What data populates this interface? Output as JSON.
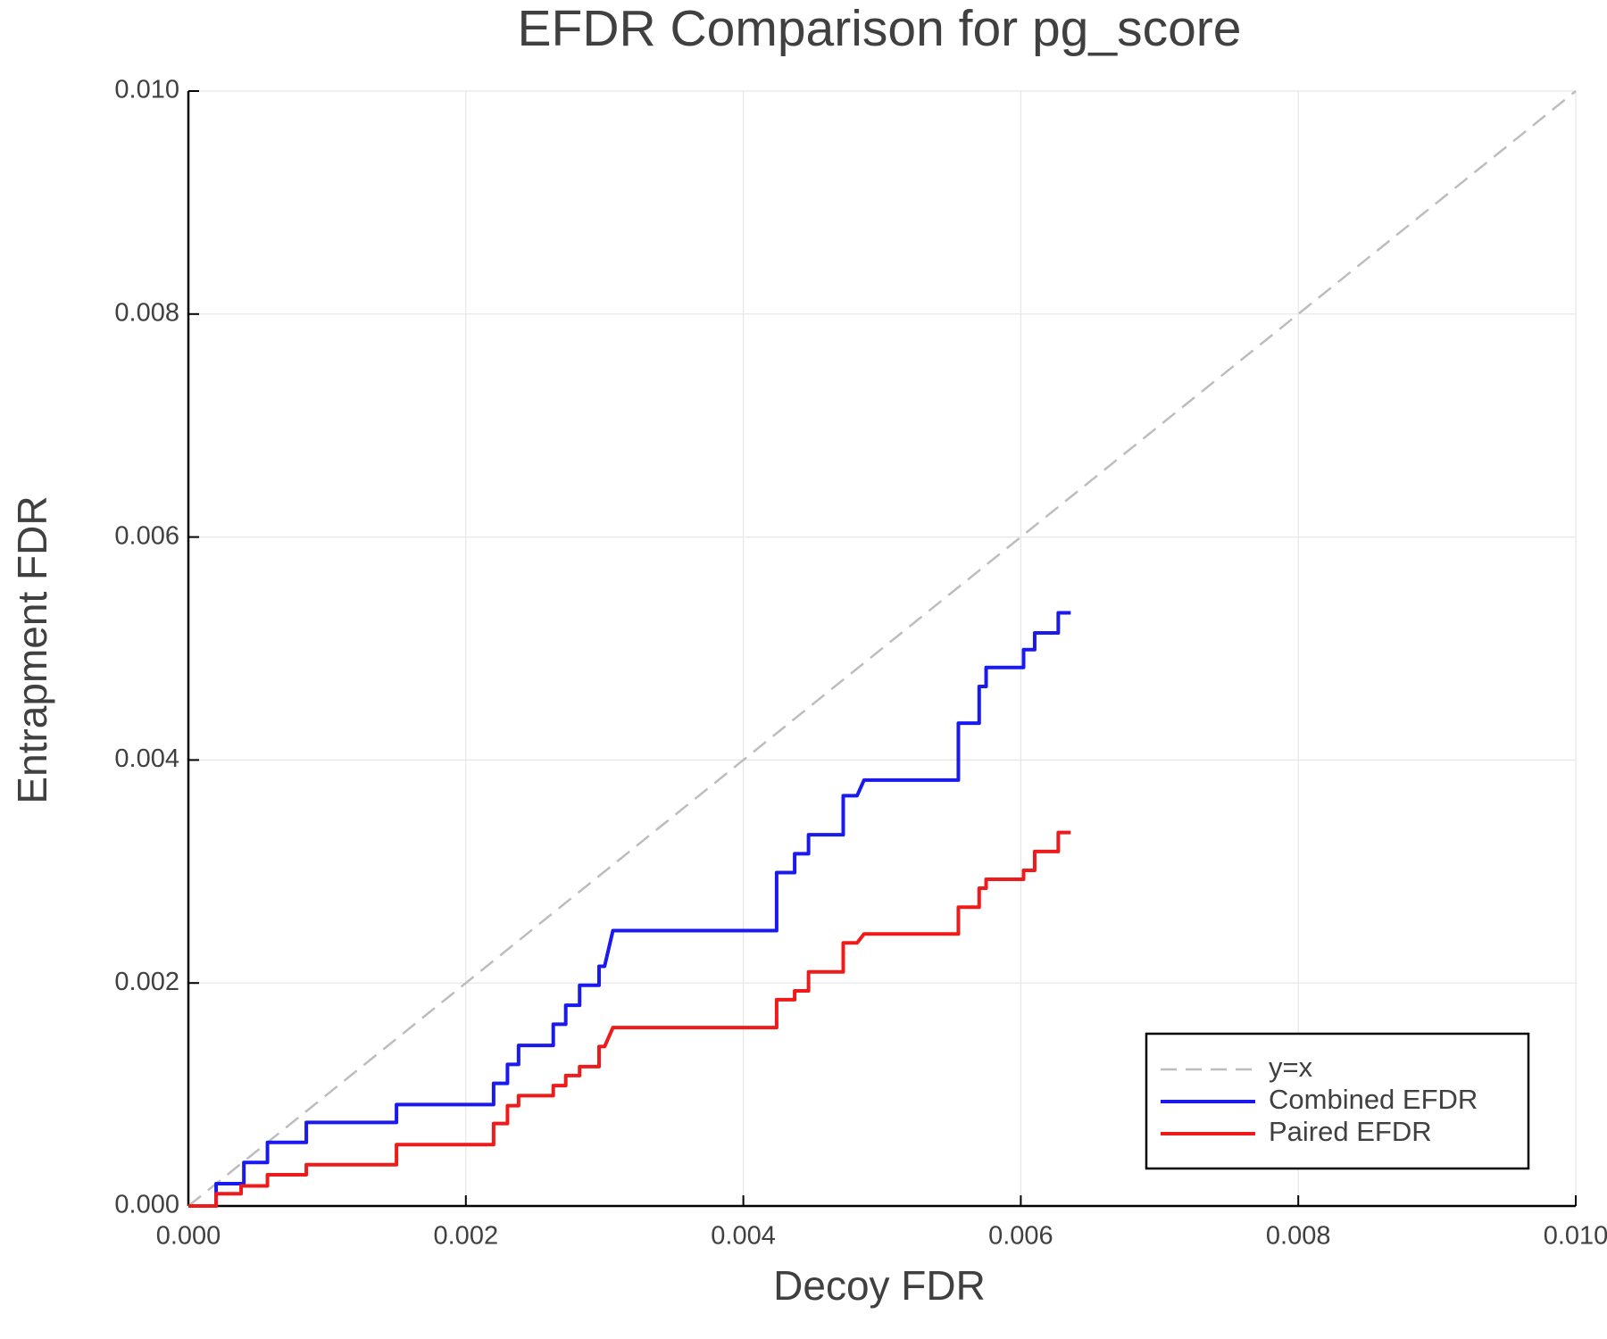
{
  "chart_data": {
    "type": "line",
    "title": "EFDR Comparison for pg_score",
    "x_label": "Decoy FDR",
    "y_label": "Entrapment FDR",
    "xlim": [
      0,
      0.01
    ],
    "ylim": [
      0,
      0.01
    ],
    "xticks": [
      {
        "value": 0,
        "label": "0.000"
      },
      {
        "value": 0.002,
        "label": "0.002"
      },
      {
        "value": 0.004,
        "label": "0.004"
      },
      {
        "value": 0.006,
        "label": "0.006"
      },
      {
        "value": 0.008,
        "label": "0.008"
      },
      {
        "value": 0.01,
        "label": "0.010"
      }
    ],
    "yticks": [
      {
        "value": 0,
        "label": "0.000"
      },
      {
        "value": 0.002,
        "label": "0.002"
      },
      {
        "value": 0.004,
        "label": "0.004"
      },
      {
        "value": 0.006,
        "label": "0.006"
      },
      {
        "value": 0.008,
        "label": "0.008"
      },
      {
        "value": 0.01,
        "label": "0.010"
      }
    ],
    "grid": true,
    "legend": "lower right",
    "series": [
      {
        "name": "y=x",
        "color": "#bdbdbd",
        "dashed": true,
        "x": [
          0,
          0.01
        ],
        "values": [
          0,
          0.01
        ]
      },
      {
        "name": "Combined EFDR",
        "color": "#1a1aef",
        "dashed": false,
        "x": [
          0,
          0.0002,
          0.0002,
          0.0004,
          0.0004,
          0.00057,
          0.00057,
          0.00085,
          0.00085,
          0.0015,
          0.0015,
          0.0022,
          0.0022,
          0.0023,
          0.0023,
          0.00238,
          0.00238,
          0.00263,
          0.00263,
          0.00272,
          0.00272,
          0.00282,
          0.00282,
          0.00296,
          0.00296,
          0.003,
          0.00306,
          0.00424,
          0.00424,
          0.00437,
          0.00437,
          0.00447,
          0.00447,
          0.00472,
          0.00472,
          0.00482,
          0.00487,
          0.00555,
          0.00555,
          0.0057,
          0.0057,
          0.00575,
          0.00575,
          0.00602,
          0.00602,
          0.0061,
          0.0061,
          0.00627,
          0.00627,
          0.00636
        ],
        "values": [
          0,
          0,
          0.0002,
          0.0002,
          0.00039,
          0.00039,
          0.00057,
          0.00057,
          0.00075,
          0.00075,
          0.00091,
          0.00091,
          0.0011,
          0.0011,
          0.00127,
          0.00127,
          0.00144,
          0.00144,
          0.00163,
          0.00163,
          0.0018,
          0.0018,
          0.00198,
          0.00198,
          0.00215,
          0.00215,
          0.00247,
          0.00247,
          0.00299,
          0.00299,
          0.00316,
          0.00316,
          0.00333,
          0.00333,
          0.00368,
          0.00368,
          0.00382,
          0.00382,
          0.00433,
          0.00433,
          0.00466,
          0.00466,
          0.00483,
          0.00483,
          0.00499,
          0.00499,
          0.00514,
          0.00514,
          0.00532,
          0.00532
        ]
      },
      {
        "name": "Paired EFDR",
        "color": "#ef1a1a",
        "dashed": false,
        "x": [
          0,
          0.0002,
          0.0002,
          0.00038,
          0.00038,
          0.00057,
          0.00057,
          0.00085,
          0.00085,
          0.0015,
          0.0015,
          0.0022,
          0.0022,
          0.0023,
          0.0023,
          0.00238,
          0.00238,
          0.00263,
          0.00263,
          0.00272,
          0.00272,
          0.00282,
          0.00282,
          0.00296,
          0.00296,
          0.003,
          0.00306,
          0.00424,
          0.00424,
          0.00437,
          0.00437,
          0.00447,
          0.00447,
          0.00472,
          0.00472,
          0.00482,
          0.00487,
          0.00555,
          0.00555,
          0.0057,
          0.0057,
          0.00575,
          0.00575,
          0.00602,
          0.00602,
          0.0061,
          0.0061,
          0.00627,
          0.00627,
          0.00636
        ],
        "values": [
          0,
          0,
          0.00011,
          0.00011,
          0.00018,
          0.00018,
          0.00028,
          0.00028,
          0.00037,
          0.00037,
          0.00055,
          0.00055,
          0.00074,
          0.00074,
          0.0009,
          0.0009,
          0.00099,
          0.00099,
          0.00108,
          0.00108,
          0.00117,
          0.00117,
          0.00125,
          0.00125,
          0.00143,
          0.00143,
          0.0016,
          0.0016,
          0.00185,
          0.00185,
          0.00193,
          0.00193,
          0.0021,
          0.0021,
          0.00236,
          0.00236,
          0.00244,
          0.00244,
          0.00268,
          0.00268,
          0.00285,
          0.00285,
          0.00293,
          0.00293,
          0.00301,
          0.00301,
          0.00318,
          0.00318,
          0.00335,
          0.00335
        ]
      }
    ]
  }
}
